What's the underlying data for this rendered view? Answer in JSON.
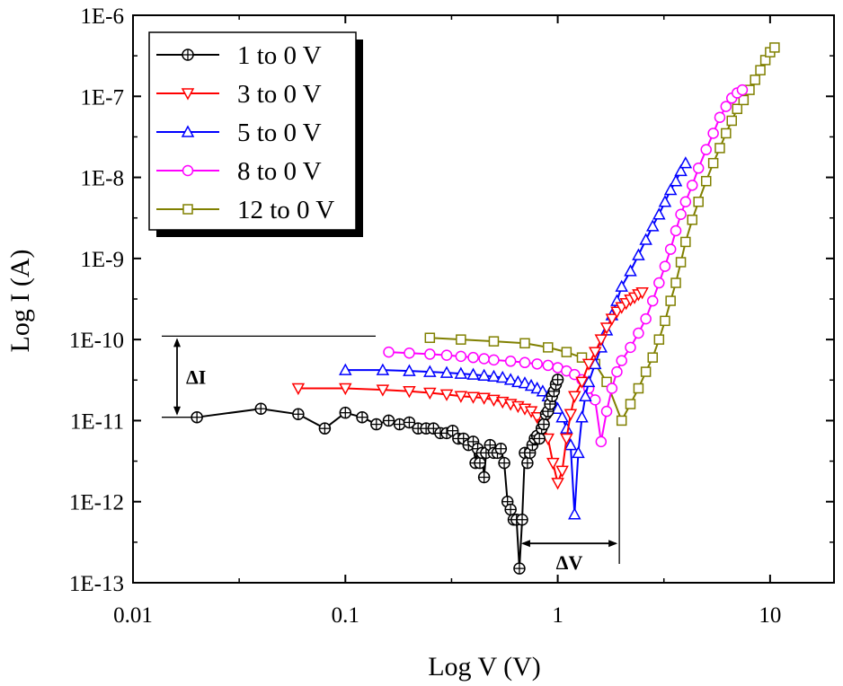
{
  "chart_data": {
    "type": "line",
    "title": "",
    "xlabel": "Log V (V)",
    "ylabel": "Log I (A)",
    "xscale": "log",
    "yscale": "log",
    "xlim": [
      0.01,
      20
    ],
    "ylim": [
      1e-13,
      1e-06
    ],
    "x_ticks": [
      {
        "value": 0.01,
        "label": "0.01"
      },
      {
        "value": 0.1,
        "label": "0.1"
      },
      {
        "value": 1,
        "label": "1"
      },
      {
        "value": 10,
        "label": "10"
      }
    ],
    "y_ticks": [
      {
        "value": 1e-06,
        "label": "1E-6"
      },
      {
        "value": 1e-07,
        "label": "1E-7"
      },
      {
        "value": 1e-08,
        "label": "1E-8"
      },
      {
        "value": 1e-09,
        "label": "1E-9"
      },
      {
        "value": 1e-10,
        "label": "1E-10"
      },
      {
        "value": 1e-11,
        "label": "1E-11"
      },
      {
        "value": 1e-12,
        "label": "1E-12"
      },
      {
        "value": 1e-13,
        "label": "1E-13"
      }
    ],
    "legend_position": "top-left",
    "series": [
      {
        "name": "1 to 0 V",
        "color": "#000000",
        "marker": "circle-plus",
        "x": [
          0.02,
          0.04,
          0.06,
          0.08,
          0.1,
          0.12,
          0.14,
          0.16,
          0.18,
          0.2,
          0.22,
          0.24,
          0.26,
          0.28,
          0.3,
          0.32,
          0.34,
          0.36,
          0.38,
          0.4,
          0.41,
          0.42,
          0.43,
          0.44,
          0.45,
          0.46,
          0.48,
          0.5,
          0.52,
          0.54,
          0.56,
          0.58,
          0.6,
          0.62,
          0.64,
          0.66,
          0.68,
          0.7,
          0.72,
          0.74,
          0.76,
          0.78,
          0.8,
          0.82,
          0.84,
          0.86,
          0.88,
          0.9,
          0.92,
          0.94,
          0.96,
          0.98,
          1.0
        ],
        "y": [
          1.1e-11,
          1.4e-11,
          1.2e-11,
          8e-12,
          1.25e-11,
          1.1e-11,
          9e-12,
          1e-11,
          9e-12,
          9.5e-12,
          8e-12,
          8e-12,
          8e-12,
          7e-12,
          7e-12,
          7.5e-12,
          6e-12,
          6e-12,
          5e-12,
          5.5e-12,
          3e-12,
          4.5e-12,
          3e-12,
          4e-12,
          2e-12,
          4e-12,
          5e-12,
          4e-12,
          4e-12,
          4.5e-12,
          3e-12,
          1e-12,
          8e-13,
          6e-13,
          6e-13,
          1.5e-13,
          6e-13,
          4e-12,
          3e-12,
          4e-12,
          5e-12,
          6e-12,
          6.5e-12,
          6e-12,
          8e-12,
          9e-12,
          1.2e-11,
          1.3e-11,
          1.6e-11,
          2e-11,
          2.3e-11,
          2.8e-11,
          3.2e-11
        ]
      },
      {
        "name": "3 to 0 V",
        "color": "#ff0000",
        "marker": "triangle-down",
        "x": [
          0.06,
          0.1,
          0.15,
          0.2,
          0.25,
          0.3,
          0.35,
          0.4,
          0.45,
          0.5,
          0.55,
          0.6,
          0.65,
          0.7,
          0.75,
          0.8,
          0.85,
          0.9,
          0.95,
          1.0,
          1.05,
          1.1,
          1.15,
          1.2,
          1.3,
          1.4,
          1.5,
          1.6,
          1.7,
          1.8,
          1.9,
          2.0,
          2.1,
          2.2,
          2.3,
          2.4,
          2.5
        ],
        "y": [
          2.5e-11,
          2.5e-11,
          2.4e-11,
          2.3e-11,
          2.2e-11,
          2.1e-11,
          2e-11,
          1.95e-11,
          1.9e-11,
          1.8e-11,
          1.7e-11,
          1.6e-11,
          1.5e-11,
          1.4e-11,
          1.3e-11,
          1.1e-11,
          9e-12,
          6e-12,
          3e-12,
          1.7e-12,
          2.4e-12,
          6e-12,
          1.2e-11,
          2e-11,
          3e-11,
          5e-11,
          7e-11,
          1e-10,
          1.4e-10,
          1.8e-10,
          2.2e-10,
          2.5e-10,
          2.8e-10,
          3.1e-10,
          3.3e-10,
          3.6e-10,
          3.8e-10
        ]
      },
      {
        "name": "5 to 0 V",
        "color": "#0000ff",
        "marker": "triangle-up",
        "x": [
          0.1,
          0.15,
          0.2,
          0.25,
          0.3,
          0.35,
          0.4,
          0.45,
          0.5,
          0.55,
          0.6,
          0.65,
          0.7,
          0.75,
          0.8,
          0.85,
          0.9,
          0.95,
          1.0,
          1.05,
          1.1,
          1.15,
          1.2,
          1.25,
          1.3,
          1.35,
          1.4,
          1.5,
          1.6,
          1.7,
          1.8,
          1.9,
          2.0,
          2.2,
          2.4,
          2.6,
          2.8,
          3.0,
          3.2,
          3.4,
          3.6,
          3.8,
          4.0
        ],
        "y": [
          4.2e-11,
          4.2e-11,
          4.1e-11,
          4e-11,
          3.9e-11,
          3.8e-11,
          3.7e-11,
          3.6e-11,
          3.5e-11,
          3.4e-11,
          3.2e-11,
          3e-11,
          2.9e-11,
          2.7e-11,
          2.5e-11,
          2.3e-11,
          2e-11,
          1.7e-11,
          1.4e-11,
          1.1e-11,
          8e-12,
          5e-12,
          7e-13,
          4e-12,
          1.1e-11,
          2e-11,
          3e-11,
          5e-11,
          8e-11,
          1.3e-10,
          2e-10,
          3e-10,
          4.5e-10,
          7e-10,
          1.1e-09,
          1.7e-09,
          2.5e-09,
          3.5e-09,
          5e-09,
          7e-09,
          9e-09,
          1.2e-08,
          1.5e-08
        ]
      },
      {
        "name": "8 to 0 V",
        "color": "#ff00ff",
        "marker": "circle",
        "x": [
          0.16,
          0.2,
          0.25,
          0.3,
          0.35,
          0.4,
          0.45,
          0.5,
          0.6,
          0.7,
          0.8,
          0.9,
          1.0,
          1.1,
          1.2,
          1.3,
          1.4,
          1.5,
          1.6,
          1.7,
          1.8,
          1.9,
          2.0,
          2.2,
          2.4,
          2.6,
          2.8,
          3.0,
          3.2,
          3.4,
          3.6,
          3.8,
          4.0,
          4.3,
          4.6,
          5.0,
          5.4,
          5.8,
          6.2,
          6.6,
          7.0,
          7.4
        ],
        "y": [
          7e-11,
          6.8e-11,
          6.6e-11,
          6.4e-11,
          6.2e-11,
          6e-11,
          5.8e-11,
          5.6e-11,
          5.4e-11,
          5.2e-11,
          5e-11,
          4.8e-11,
          4.5e-11,
          4.1e-11,
          3.7e-11,
          3.2e-11,
          2.5e-11,
          1.8e-11,
          5.5e-12,
          1.3e-11,
          2.5e-11,
          4e-11,
          5.5e-11,
          8e-11,
          1.2e-10,
          1.8e-10,
          3e-10,
          5e-10,
          8e-10,
          1.3e-09,
          2.2e-09,
          3.5e-09,
          5e-09,
          8e-09,
          1.3e-08,
          2.2e-08,
          3.5e-08,
          5.5e-08,
          7.5e-08,
          9.5e-08,
          1.1e-07,
          1.2e-07
        ]
      },
      {
        "name": "12 to 0 V",
        "color": "#808000",
        "marker": "square",
        "x": [
          0.25,
          0.35,
          0.5,
          0.7,
          0.9,
          1.1,
          1.3,
          1.5,
          1.7,
          2.0,
          2.2,
          2.4,
          2.6,
          2.8,
          3.0,
          3.2,
          3.4,
          3.6,
          3.8,
          4.0,
          4.3,
          4.6,
          5.0,
          5.4,
          5.8,
          6.2,
          6.6,
          7.0,
          7.5,
          8.0,
          8.5,
          9.0,
          9.5,
          10.0,
          10.5
        ],
        "y": [
          1.05e-10,
          1e-10,
          9.5e-11,
          9e-11,
          8e-11,
          7e-11,
          6e-11,
          5e-11,
          3e-11,
          1e-11,
          1.6e-11,
          2.5e-11,
          4e-11,
          6e-11,
          1e-10,
          1.7e-10,
          3e-10,
          5e-10,
          9e-10,
          1.6e-09,
          3e-09,
          5e-09,
          9e-09,
          1.5e-08,
          2.3e-08,
          3.5e-08,
          5e-08,
          7e-08,
          9e-08,
          1.2e-07,
          1.6e-07,
          2.1e-07,
          2.8e-07,
          3.5e-07,
          4e-07
        ]
      }
    ],
    "annotations": [
      {
        "label": "ΔI",
        "type": "vertical-span",
        "x": 0.016,
        "y_from": 1.1e-11,
        "y_to": 1.1e-10
      },
      {
        "label": "ΔV",
        "type": "horizontal-span",
        "y": 1.7e-13,
        "x_from": 0.66,
        "x_to": 1.95
      }
    ]
  }
}
